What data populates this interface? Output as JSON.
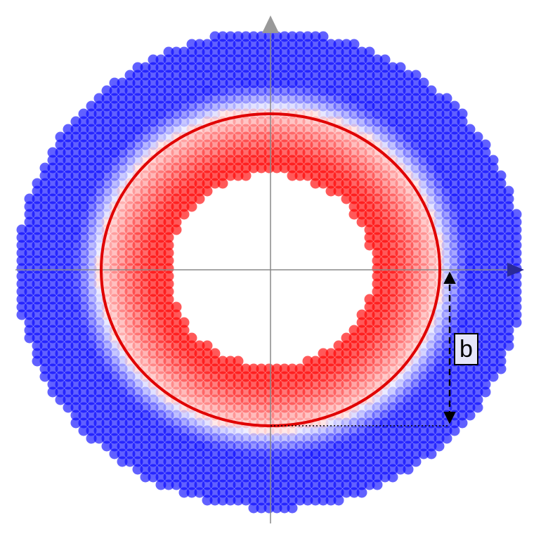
{
  "diagram": {
    "label_b": "b"
  },
  "colors": {
    "outer_ring": "#0000ff",
    "inner_ring": "#ff0000",
    "transition": "#ffffff",
    "boundary_circle": "#e00000",
    "axes": "#888888",
    "axis_arrow_up": "#999999",
    "axis_arrow_right": "#2a2a99",
    "label_box_fill": "#e6e6fa",
    "annotation": "#000000"
  },
  "icons": {
    "axis_up": "triangle-up-arrow",
    "axis_right": "triangle-right-arrow",
    "measure": "double-headed-dashed-arrow"
  }
}
